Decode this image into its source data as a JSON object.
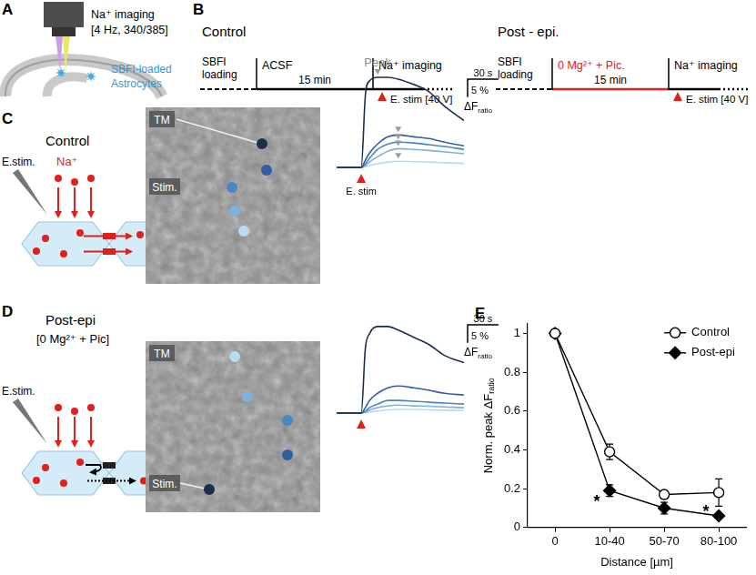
{
  "panel_labels": [
    "A",
    "B",
    "C",
    "D",
    "E"
  ],
  "panel_a": {
    "imaging": "Na⁺ imaging",
    "settings": "[4 Hz, 340/385]",
    "cells": [
      "SBFI-loaded",
      "Astrocytes"
    ]
  },
  "panel_b": {
    "protocols": [
      {
        "title": "Control",
        "loading": "SBFI loading",
        "treatment": "ACSF",
        "duration": "15 min",
        "imaging": "Na⁺ imaging",
        "stim": "E. stim [40 V]",
        "color": "#000000"
      },
      {
        "title": "Post - epi.",
        "loading": "SBFI loading",
        "treatment": "0 Mg²⁺ + Pic.",
        "duration": "15 min",
        "imaging": "Na⁺ imaging",
        "stim": "E. stim [40 V]",
        "color": "#e0201b"
      }
    ]
  },
  "panel_c": {
    "condition": "Control",
    "schematic": {
      "stim": "E.stim.",
      "ion": "Na⁺"
    },
    "image_labels": {
      "tm": "TM",
      "stim": "Stim."
    },
    "traces": {
      "type": "line",
      "x": [
        0,
        10,
        20,
        24,
        28,
        32,
        40,
        50,
        60,
        75,
        90,
        105,
        124
      ],
      "xlim": [
        0,
        124
      ],
      "ylim": [
        -1,
        27
      ],
      "tick_labels": false,
      "stim_time": 24,
      "stim_label": "E. stim",
      "peak_label": "Peak",
      "scale_bar": {
        "y": {
          "value": 5,
          "label": "5 %"
        },
        "x": {
          "value": 30,
          "label": "30 s"
        },
        "y_label": "ΔF",
        "y_label_subscript": "ratio"
      },
      "series": [
        {
          "color": "#1c2e4a",
          "values": [
            0,
            0,
            0,
            0,
            20,
            24,
            25,
            25,
            24.5,
            23,
            21,
            17,
            13
          ]
        },
        {
          "color": "#2f5f9e",
          "values": [
            0,
            0,
            0,
            0,
            2,
            4,
            6.5,
            8.5,
            9,
            8.5,
            8,
            7,
            6
          ]
        },
        {
          "color": "#4a85c4",
          "values": [
            0,
            0,
            0,
            0,
            1,
            2.5,
            5,
            6.5,
            7,
            6.8,
            6.3,
            5.8,
            5
          ]
        },
        {
          "color": "#7fb1dc",
          "values": [
            0,
            0,
            0,
            0,
            0.5,
            1.5,
            3,
            4.5,
            5.2,
            5,
            4.7,
            4.3,
            3.8
          ]
        },
        {
          "color": "#b8dbef",
          "values": [
            0,
            0,
            0,
            0,
            0.2,
            0.5,
            1,
            1.5,
            1.7,
            1.6,
            1.5,
            1.3,
            1.1
          ]
        }
      ]
    }
  },
  "panel_d": {
    "condition": "Post-epi",
    "treatment": "[0 Mg²⁺ + Pic]",
    "schematic": {
      "stim": "E.stim."
    },
    "image_labels": {
      "tm": "TM",
      "stim": "Stim."
    },
    "traces": {
      "type": "line",
      "x": [
        0,
        10,
        20,
        24,
        28,
        32,
        40,
        50,
        60,
        75,
        90,
        105,
        124
      ],
      "xlim": [
        0,
        124
      ],
      "ylim": [
        -1,
        27
      ],
      "tick_labels": false,
      "stim_time": 24,
      "scale_bar": {
        "y": {
          "value": 5,
          "label": "5 %"
        },
        "x": {
          "value": 30,
          "label": "30 s"
        },
        "y_label": "ΔF",
        "y_label_subscript": "ratio"
      },
      "series": [
        {
          "color": "#1c2e4a",
          "values": [
            0,
            0,
            0,
            0,
            18,
            22,
            24,
            24,
            23,
            21,
            19,
            16,
            14
          ]
        },
        {
          "color": "#2f5f9e",
          "values": [
            0,
            0,
            0,
            0,
            1.5,
            3.5,
            5.5,
            7,
            7.5,
            7,
            6.3,
            5.5,
            5
          ]
        },
        {
          "color": "#4a85c4",
          "values": [
            0,
            0,
            0,
            0,
            0.5,
            1.5,
            2.5,
            3.5,
            3.5,
            3.3,
            3,
            2.8,
            2.5
          ]
        },
        {
          "color": "#7fb1dc",
          "values": [
            0,
            0,
            0,
            0,
            0.3,
            0.8,
            1.5,
            2,
            2.2,
            2,
            1.9,
            1.7,
            1.5
          ]
        },
        {
          "color": "#b8dbef",
          "values": [
            0,
            0,
            0,
            0,
            0.1,
            0.3,
            0.6,
            0.9,
            1,
            1,
            0.9,
            0.8,
            0.7
          ]
        }
      ]
    }
  },
  "chart_data": {
    "type": "line",
    "categories": [
      "0",
      "10-40",
      "50-70",
      "80-100"
    ],
    "xlabel": "Distance [µm]",
    "ylabel": "Norm. peak ΔF",
    "ylabel_subscript": "ratio",
    "ylim": [
      0,
      1.05
    ],
    "yticks": [
      0,
      0.2,
      0.4,
      0.6,
      0.8,
      1
    ],
    "grid": false,
    "legend": "upper right",
    "series": [
      {
        "name": "Control",
        "color": "#000000",
        "marker": "open_circle",
        "values": [
          1,
          0.39,
          0.17,
          0.18
        ],
        "errors": [
          0,
          0.04,
          0.02,
          0.07
        ]
      },
      {
        "name": "Post-epi",
        "color": "#000000",
        "marker": "diamond",
        "values": [
          1,
          0.19,
          0.1,
          0.06
        ],
        "errors": [
          0,
          0.03,
          0.03,
          0.01
        ]
      }
    ],
    "annotations": [
      {
        "text": "*",
        "category": "10-40",
        "y": 0.13
      },
      {
        "text": "*",
        "category": "80-100",
        "y": 0.08
      }
    ]
  }
}
